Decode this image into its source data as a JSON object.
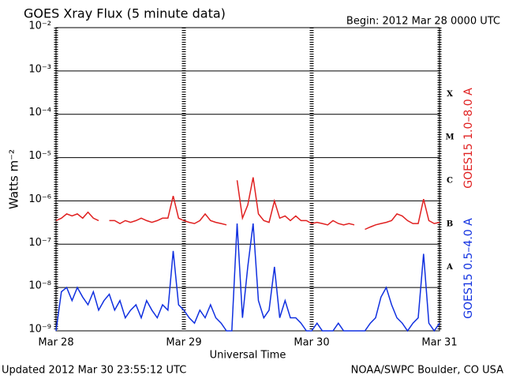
{
  "chart_data": {
    "type": "line",
    "title": "GOES Xray Flux (5 minute data)",
    "subtitle": "Begin:  2012 Mar 28 0000 UTC",
    "xlabel": "Universal Time",
    "ylabel": "Watts m⁻²",
    "footer_left": "Updated 2012 Mar 30 23:55:12 UTC",
    "footer_right": "NOAA/SWPC Boulder, CO USA",
    "log_y": true,
    "grid": true,
    "xlim": [
      0,
      72
    ],
    "xticks": [
      {
        "value": 0,
        "label": "Mar 28"
      },
      {
        "value": 24,
        "label": "Mar 29"
      },
      {
        "value": 48,
        "label": "Mar 30"
      },
      {
        "value": 72,
        "label": "Mar 31"
      }
    ],
    "ylim": [
      1e-09,
      0.01
    ],
    "yticks": [
      {
        "value": 1e-09,
        "label": "10⁻⁹"
      },
      {
        "value": 1e-08,
        "label": "10⁻⁸"
      },
      {
        "value": 1e-07,
        "label": "10⁻⁷"
      },
      {
        "value": 1e-06,
        "label": "10⁻⁶"
      },
      {
        "value": 1e-05,
        "label": "10⁻⁵"
      },
      {
        "value": 0.0001,
        "label": "10⁻⁴"
      },
      {
        "value": 0.001,
        "label": "10⁻³"
      },
      {
        "value": 0.01,
        "label": "10⁻²"
      }
    ],
    "class_labels": [
      {
        "value": 1e-08,
        "label": "A"
      },
      {
        "value": 1e-07,
        "label": "B"
      },
      {
        "value": 1e-06,
        "label": "C"
      },
      {
        "value": 1e-05,
        "label": "M"
      },
      {
        "value": 0.0001,
        "label": "X"
      }
    ],
    "x": [
      0,
      1,
      2,
      3,
      4,
      5,
      6,
      7,
      8,
      9,
      10,
      11,
      12,
      13,
      14,
      15,
      16,
      17,
      18,
      19,
      20,
      21,
      22,
      23,
      24,
      25,
      26,
      27,
      28,
      29,
      30,
      31,
      32,
      33,
      34,
      35,
      36,
      37,
      38,
      39,
      40,
      41,
      42,
      43,
      44,
      45,
      46,
      47,
      48,
      49,
      50,
      51,
      52,
      53,
      54,
      55,
      56,
      57,
      58,
      59,
      60,
      61,
      62,
      63,
      64,
      65,
      66,
      67,
      68,
      69,
      70,
      71,
      72
    ],
    "series": [
      {
        "name": "GOES15 1.0–8.0 A",
        "color": "#e02020",
        "values": [
          3.5e-07,
          4e-07,
          5e-07,
          4.5e-07,
          5e-07,
          4e-07,
          5.5e-07,
          4e-07,
          3.5e-07,
          null,
          3.5e-07,
          3.5e-07,
          3e-07,
          3.5e-07,
          3.2e-07,
          3.5e-07,
          4e-07,
          3.5e-07,
          3.2e-07,
          3.5e-07,
          4e-07,
          4e-07,
          1.3e-06,
          4e-07,
          3.5e-07,
          3.2e-07,
          3e-07,
          3.5e-07,
          5e-07,
          3.5e-07,
          3.2e-07,
          3e-07,
          2.8e-07,
          null,
          3e-06,
          4e-07,
          8e-07,
          3.5e-06,
          5e-07,
          3.5e-07,
          3.2e-07,
          1e-06,
          4e-07,
          4.5e-07,
          3.5e-07,
          4.5e-07,
          3.5e-07,
          3.5e-07,
          3e-07,
          3.2e-07,
          3e-07,
          2.8e-07,
          3.5e-07,
          3e-07,
          2.8e-07,
          3e-07,
          2.8e-07,
          null,
          2.2e-07,
          2.5e-07,
          2.8e-07,
          3e-07,
          3.2e-07,
          3.5e-07,
          5e-07,
          4.5e-07,
          3.5e-07,
          3e-07,
          3e-07,
          1.1e-06,
          3.5e-07,
          3e-07,
          3.2e-07
        ]
      },
      {
        "name": "GOES15 0.5–4.0 A",
        "color": "#1030e0",
        "values": [
          1e-09,
          8e-09,
          1e-08,
          5e-09,
          1e-08,
          6e-09,
          4e-09,
          8e-09,
          3e-09,
          5e-09,
          7e-09,
          3e-09,
          5e-09,
          2e-09,
          3e-09,
          4e-09,
          2e-09,
          5e-09,
          3e-09,
          2e-09,
          4e-09,
          3e-09,
          7e-08,
          4e-09,
          3e-09,
          2e-09,
          1.5e-09,
          3e-09,
          2e-09,
          4e-09,
          2e-09,
          1.5e-09,
          1e-09,
          1e-09,
          3e-07,
          2e-09,
          3e-08,
          3e-07,
          5e-09,
          2e-09,
          3e-09,
          3e-08,
          2e-09,
          5e-09,
          2e-09,
          2e-09,
          1.5e-09,
          1e-09,
          1e-09,
          1.5e-09,
          1e-09,
          1e-09,
          1e-09,
          1.5e-09,
          1e-09,
          1e-09,
          1e-09,
          1e-09,
          1e-09,
          1.5e-09,
          2e-09,
          6e-09,
          1e-08,
          4e-09,
          2e-09,
          1.5e-09,
          1e-09,
          1.5e-09,
          2e-09,
          6e-08,
          1.5e-09,
          1e-09,
          1.5e-09
        ]
      }
    ]
  }
}
